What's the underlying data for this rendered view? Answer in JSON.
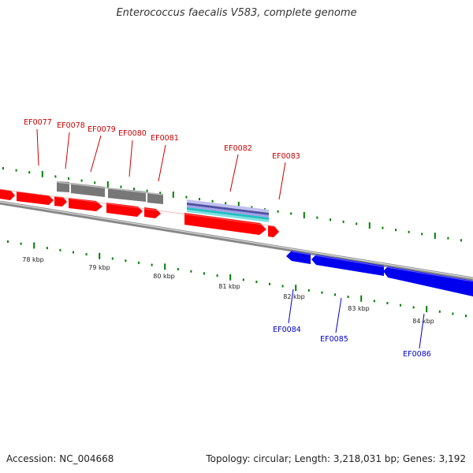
{
  "title": "Enterococcus faecalis V583, complete genome",
  "footer": {
    "accession": "Accession: NC_004668",
    "summary": "Topology: circular; Length: 3,218,031 bp; Genes: 3,192"
  },
  "colors": {
    "forward_gene": "#ff0000",
    "reverse_gene": "#0000ee",
    "forward_label": "#cc0000",
    "reverse_label": "#0000cc",
    "rna_feature": "#777777",
    "tick": "#008000",
    "backbone": "#888888"
  },
  "kbp_labels": [
    "78 kbp",
    "79 kbp",
    "80 kbp",
    "81 kbp",
    "82 kbp",
    "83 kbp",
    "84 kbp"
  ],
  "forward_genes": [
    "EF0077",
    "EF0078",
    "EF0079",
    "EF0080",
    "EF0081",
    "EF0082",
    "EF0083"
  ],
  "reverse_genes": [
    "EF0084",
    "EF0085",
    "EF0086"
  ]
}
